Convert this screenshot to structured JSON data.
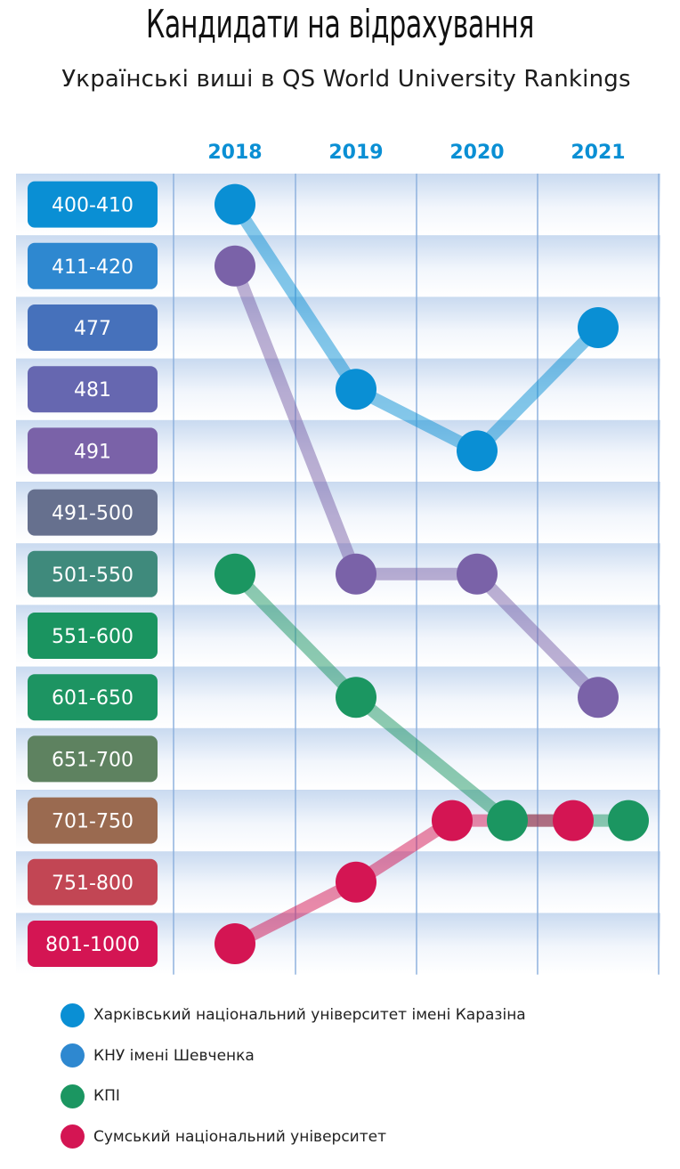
{
  "title": "Кандидати на відрахування",
  "subtitle": "Українські виші в QS World University Rankings",
  "chart_data": {
    "type": "line",
    "title": "Кандидати на відрахування",
    "subtitle": "Українські виші в QS World University Rankings",
    "x": [
      "2018",
      "2019",
      "2020",
      "2021"
    ],
    "categories": [
      "400-410",
      "411-420",
      "477",
      "481",
      "491",
      "491-500",
      "501-550",
      "551-600",
      "601-650",
      "651-700",
      "701-750",
      "751-800",
      "801-1000"
    ],
    "category_colors": [
      "#0a8fd4",
      "#2e88d0",
      "#4671bb",
      "#6667b0",
      "#7a62a8",
      "#66708e",
      "#3f8a7c",
      "#1a9460",
      "#1d9462",
      "#5e8260",
      "#9a6a50",
      "#c24654",
      "#d41553"
    ],
    "grid": true,
    "series": [
      {
        "name": "Харківський національний університет імені Каразіна",
        "color": "#0a8fd4",
        "values": [
          "400-410",
          "481",
          "491",
          "477"
        ]
      },
      {
        "name": "КНУ імені Шевченка",
        "color": "#7a62a8",
        "values": [
          "411-420",
          "501-550",
          "501-550",
          "601-650"
        ]
      },
      {
        "name": "КПІ",
        "color": "#1b9661",
        "values": [
          "501-550",
          "601-650",
          "701-750",
          "701-750"
        ]
      },
      {
        "name": "Сумський національний університет",
        "color": "#d41553",
        "values": [
          "801-1000",
          "751-800",
          "701-750",
          "701-750"
        ]
      }
    ],
    "legend": [
      {
        "label": "Харківський національний університет імені Каразіна",
        "color": "#0a8fd4"
      },
      {
        "label": "КНУ імені Шевченка",
        "color": "#2e88d0"
      },
      {
        "label": "КПІ",
        "color": "#1b9661"
      },
      {
        "label": "Сумський національний університет",
        "color": "#d41553"
      }
    ],
    "legend_position": "bottom-left"
  }
}
